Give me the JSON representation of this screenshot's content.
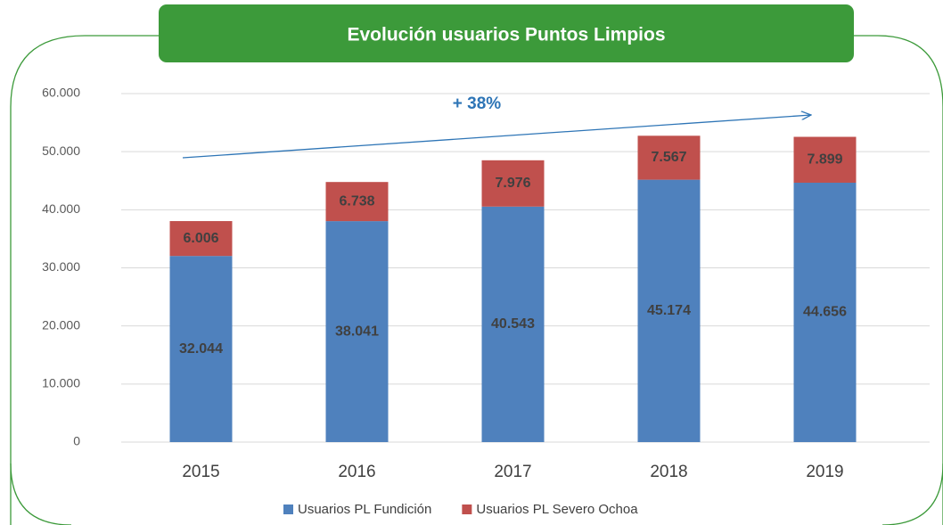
{
  "chart_data": {
    "type": "bar",
    "stacked": true,
    "title": "Evolución usuarios Puntos Limpios",
    "annotation": "+ 38%",
    "categories": [
      "2015",
      "2016",
      "2017",
      "2018",
      "2019"
    ],
    "series": [
      {
        "name": "Usuarios PL Fundición",
        "color": "#4f81bd",
        "values": [
          32044,
          38041,
          40543,
          45174,
          44656
        ],
        "value_labels": [
          "32.044",
          "38.041",
          "40.543",
          "45.174",
          "44.656"
        ]
      },
      {
        "name": "Usuarios PL Severo Ochoa",
        "color": "#c0504d",
        "values": [
          6006,
          6738,
          7976,
          7567,
          7899
        ],
        "value_labels": [
          "6.006",
          "6.738",
          "7.976",
          "7.567",
          "7.899"
        ]
      }
    ],
    "ylim": [
      0,
      60000
    ],
    "yticks": [
      0,
      {
        "value": 10000,
        "label": "10.000"
      },
      {
        "value": 20000,
        "label": "20.000"
      },
      {
        "value": 30000,
        "label": "30.000"
      },
      {
        "value": 40000,
        "label": "40.000"
      },
      {
        "value": 50000,
        "label": "50.000"
      },
      {
        "value": 60000,
        "label": "60.000"
      }
    ],
    "grid": true,
    "legend": "bottom"
  }
}
